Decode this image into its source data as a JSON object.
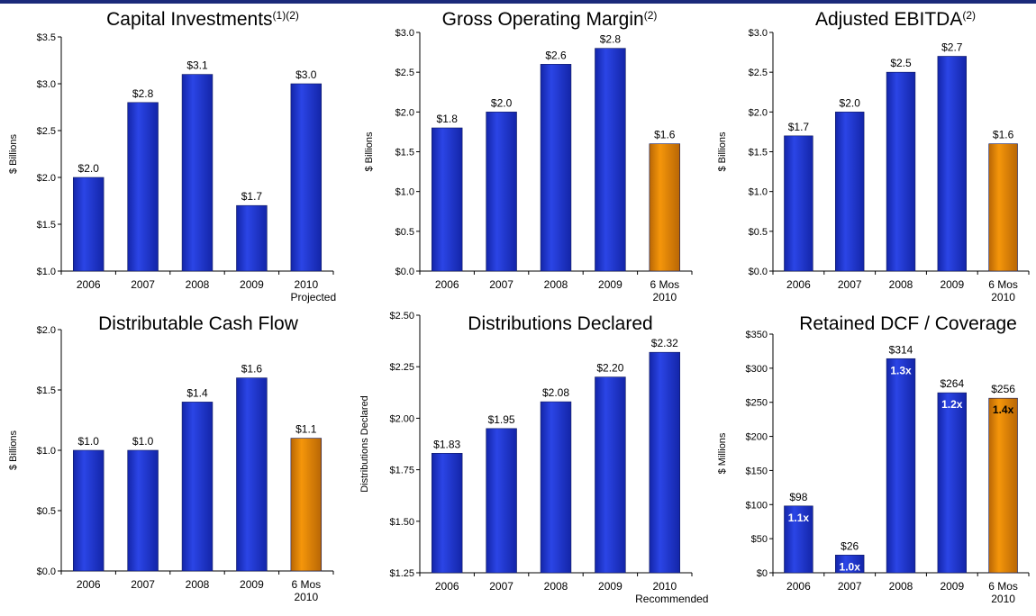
{
  "colors": {
    "blue": "#2b45e6",
    "blue_dark": "#1325a8",
    "orange": "#f5960a",
    "orange_dark": "#b86605",
    "topbar": "#1b2a7a"
  },
  "footnote": "",
  "chart_data": [
    {
      "type": "bar",
      "title": "Capital Investments",
      "title_sup": "(1)(2)",
      "ylabel": "$ Billions",
      "ylim": [
        1.0,
        3.5
      ],
      "yticks": [
        1.0,
        1.5,
        2.0,
        2.5,
        3.0,
        3.5
      ],
      "ytick_labels": [
        "$1.0",
        "$1.5",
        "$2.0",
        "$2.5",
        "$3.0",
        "$3.5"
      ],
      "categories": [
        "2006",
        "2007",
        "2008",
        "2009",
        "2010"
      ],
      "category_sublabels": [
        "",
        "",
        "",
        "",
        "Projected"
      ],
      "values": [
        2.0,
        2.8,
        3.1,
        1.7,
        3.0
      ],
      "data_labels": [
        "$2.0",
        "$2.8",
        "$3.1",
        "$1.7",
        "$3.0"
      ],
      "bar_colors": [
        "blue",
        "blue",
        "blue",
        "blue",
        "blue"
      ]
    },
    {
      "type": "bar",
      "title": "Gross Operating Margin",
      "title_sup": "(2)",
      "ylabel": "$ Billions",
      "ylim": [
        0.0,
        3.0
      ],
      "yticks": [
        0.0,
        0.5,
        1.0,
        1.5,
        2.0,
        2.5,
        3.0
      ],
      "ytick_labels": [
        "$0.0",
        "$0.5",
        "$1.0",
        "$1.5",
        "$2.0",
        "$2.5",
        "$3.0"
      ],
      "categories": [
        "2006",
        "2007",
        "2008",
        "2009",
        "6 Mos"
      ],
      "category_sublabels": [
        "",
        "",
        "",
        "",
        "2010"
      ],
      "values": [
        1.8,
        2.0,
        2.6,
        2.8,
        1.6
      ],
      "data_labels": [
        "$1.8",
        "$2.0",
        "$2.6",
        "$2.8",
        "$1.6"
      ],
      "bar_colors": [
        "blue",
        "blue",
        "blue",
        "blue",
        "orange"
      ]
    },
    {
      "type": "bar",
      "title": "Adjusted EBITDA",
      "title_sup": "(2)",
      "ylabel": "$ Billions",
      "ylim": [
        0.0,
        3.0
      ],
      "yticks": [
        0.0,
        0.5,
        1.0,
        1.5,
        2.0,
        2.5,
        3.0
      ],
      "ytick_labels": [
        "$0.0",
        "$0.5",
        "$1.0",
        "$1.5",
        "$2.0",
        "$2.5",
        "$3.0"
      ],
      "categories": [
        "2006",
        "2007",
        "2008",
        "2009",
        "6 Mos"
      ],
      "category_sublabels": [
        "",
        "",
        "",
        "",
        "2010"
      ],
      "values": [
        1.7,
        2.0,
        2.5,
        2.7,
        1.6
      ],
      "data_labels": [
        "$1.7",
        "$2.0",
        "$2.5",
        "$2.7",
        "$1.6"
      ],
      "bar_colors": [
        "blue",
        "blue",
        "blue",
        "blue",
        "orange"
      ]
    },
    {
      "type": "bar",
      "title": "Distributable Cash Flow",
      "title_sup": "",
      "ylabel": "$ Billions",
      "ylim": [
        0.0,
        2.0
      ],
      "yticks": [
        0.0,
        0.5,
        1.0,
        1.5,
        2.0
      ],
      "ytick_labels": [
        "$0.0",
        "$0.5",
        "$1.0",
        "$1.5",
        "$2.0"
      ],
      "categories": [
        "2006",
        "2007",
        "2008",
        "2009",
        "6 Mos"
      ],
      "category_sublabels": [
        "",
        "",
        "",
        "",
        "2010"
      ],
      "values": [
        1.0,
        1.0,
        1.4,
        1.6,
        1.1
      ],
      "data_labels": [
        "$1.0",
        "$1.0",
        "$1.4",
        "$1.6",
        "$1.1"
      ],
      "bar_colors": [
        "blue",
        "blue",
        "blue",
        "blue",
        "orange"
      ]
    },
    {
      "type": "bar",
      "title": "Distributions Declared",
      "title_sup": "",
      "ylabel": "Distributions Declared",
      "ylim": [
        1.25,
        2.5
      ],
      "yticks": [
        1.25,
        1.5,
        1.75,
        2.0,
        2.25,
        2.5
      ],
      "ytick_labels": [
        "$1.25",
        "$1.50",
        "$1.75",
        "$2.00",
        "$2.25",
        "$2.50"
      ],
      "categories": [
        "2006",
        "2007",
        "2008",
        "2009",
        "2010"
      ],
      "category_sublabels": [
        "",
        "",
        "",
        "",
        "Recommended"
      ],
      "values": [
        1.83,
        1.95,
        2.08,
        2.2,
        2.32
      ],
      "data_labels": [
        "$1.83",
        "$1.95",
        "$2.08",
        "$2.20",
        "$2.32"
      ],
      "bar_colors": [
        "blue",
        "blue",
        "blue",
        "blue",
        "blue"
      ]
    },
    {
      "type": "bar",
      "title": "Retained DCF / Coverage",
      "title_sup": "",
      "ylabel": "$ Millions",
      "ylim": [
        0,
        350
      ],
      "yticks": [
        0,
        50,
        100,
        150,
        200,
        250,
        300,
        350
      ],
      "ytick_labels": [
        "$0",
        "$50",
        "$100",
        "$150",
        "$200",
        "$250",
        "$300",
        "$350"
      ],
      "categories": [
        "2006",
        "2007",
        "2008",
        "2009",
        "6 Mos"
      ],
      "category_sublabels": [
        "",
        "",
        "",
        "",
        "2010"
      ],
      "values": [
        98,
        26,
        314,
        264,
        256
      ],
      "data_labels": [
        "$98",
        "$26",
        "$314",
        "$264",
        "$256"
      ],
      "coverage_labels": [
        "1.1x",
        "1.0x",
        "1.3x",
        "1.2x",
        "1.4x"
      ],
      "bar_colors": [
        "blue",
        "blue",
        "blue",
        "blue",
        "orange"
      ]
    }
  ]
}
